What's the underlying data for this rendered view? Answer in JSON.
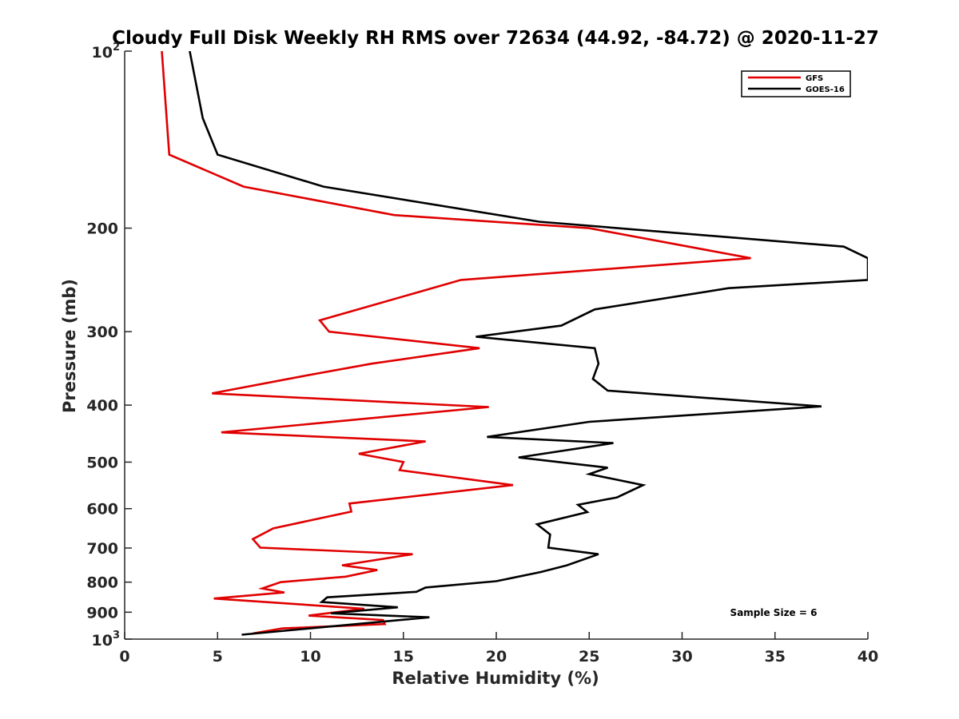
{
  "chart_data": {
    "type": "line",
    "title": "Cloudy Full Disk Weekly RH RMS over 72634 (44.92, -84.72) @ 2020-11-27",
    "xlabel": "Relative Humidity (%)",
    "ylabel": "Pressure (mb)",
    "xlim": [
      0,
      40
    ],
    "ylim": [
      100,
      1000
    ],
    "yscale": "log",
    "y_reversed": true,
    "x_ticks": [
      0,
      5,
      10,
      15,
      20,
      25,
      30,
      35,
      40
    ],
    "x_tick_labels": [
      "0",
      "5",
      "10",
      "15",
      "20",
      "25",
      "30",
      "35",
      "40"
    ],
    "y_ticks": [
      200,
      300,
      400,
      500,
      600,
      700,
      800,
      900
    ],
    "y_tick_labels": [
      "200",
      "300",
      "400",
      "500",
      "600",
      "700",
      "800",
      "900"
    ],
    "y_decade_ticks": [
      {
        "value": 100,
        "base": "10",
        "exp": "2"
      },
      {
        "value": 1000,
        "base": "10",
        "exp": "3"
      }
    ],
    "grid": false,
    "legend_position": "top-right",
    "annotation": "Sample Size = 6",
    "series": [
      {
        "name": "GFS",
        "color": "#e00000",
        "points": [
          [
            2.0,
            100
          ],
          [
            2.4,
            150
          ],
          [
            6.4,
            170
          ],
          [
            14.5,
            190
          ],
          [
            25,
            200
          ],
          [
            33.7,
            225
          ],
          [
            18.1,
            245
          ],
          [
            10.5,
            287
          ],
          [
            11.0,
            300
          ],
          [
            19.1,
            320
          ],
          [
            13.3,
            340
          ],
          [
            9.6,
            357
          ],
          [
            4.7,
            382
          ],
          [
            19.6,
            403
          ],
          [
            5.2,
            445
          ],
          [
            16.2,
            461
          ],
          [
            12.6,
            484
          ],
          [
            15.0,
            500
          ],
          [
            14.8,
            516
          ],
          [
            20.9,
            547
          ],
          [
            12.1,
            588
          ],
          [
            12.2,
            607
          ],
          [
            8.0,
            648
          ],
          [
            6.9,
            676
          ],
          [
            7.3,
            699
          ],
          [
            15.5,
            717
          ],
          [
            11.7,
            749
          ],
          [
            13.6,
            763
          ],
          [
            11.9,
            783
          ],
          [
            8.4,
            800
          ],
          [
            7.4,
            820
          ],
          [
            8.6,
            833
          ],
          [
            4.8,
            853
          ],
          [
            12.9,
            888
          ],
          [
            9.9,
            912
          ],
          [
            13.9,
            928
          ],
          [
            14.0,
            943
          ],
          [
            8.5,
            959
          ],
          [
            6.9,
            978
          ]
        ]
      },
      {
        "name": "GOES-16",
        "color": "#000000",
        "points": [
          [
            3.5,
            100
          ],
          [
            4.2,
            130
          ],
          [
            5.0,
            150
          ],
          [
            10.7,
            170
          ],
          [
            22.3,
            195
          ],
          [
            38.7,
            215
          ],
          [
            40.0,
            225
          ],
          [
            40.0,
            245
          ],
          [
            32.5,
            253
          ],
          [
            25.3,
            275
          ],
          [
            23.5,
            293
          ],
          [
            18.9,
            306
          ],
          [
            25.3,
            320
          ],
          [
            25.5,
            340
          ],
          [
            25.2,
            361
          ],
          [
            26.0,
            378
          ],
          [
            37.5,
            402
          ],
          [
            25.0,
            427
          ],
          [
            19.5,
            453
          ],
          [
            26.3,
            464
          ],
          [
            21.2,
            491
          ],
          [
            26.0,
            511
          ],
          [
            25.0,
            524
          ],
          [
            27.9,
            547
          ],
          [
            26.5,
            574
          ],
          [
            24.4,
            591
          ],
          [
            24.9,
            608
          ],
          [
            22.2,
            638
          ],
          [
            22.9,
            664
          ],
          [
            22.8,
            699
          ],
          [
            25.5,
            717
          ],
          [
            23.8,
            749
          ],
          [
            22.4,
            769
          ],
          [
            20.0,
            797
          ],
          [
            16.2,
            817
          ],
          [
            15.7,
            831
          ],
          [
            10.9,
            849
          ],
          [
            10.6,
            865
          ],
          [
            14.7,
            883
          ],
          [
            11.1,
            904
          ],
          [
            16.4,
            918
          ],
          [
            6.3,
            983
          ]
        ]
      }
    ]
  }
}
